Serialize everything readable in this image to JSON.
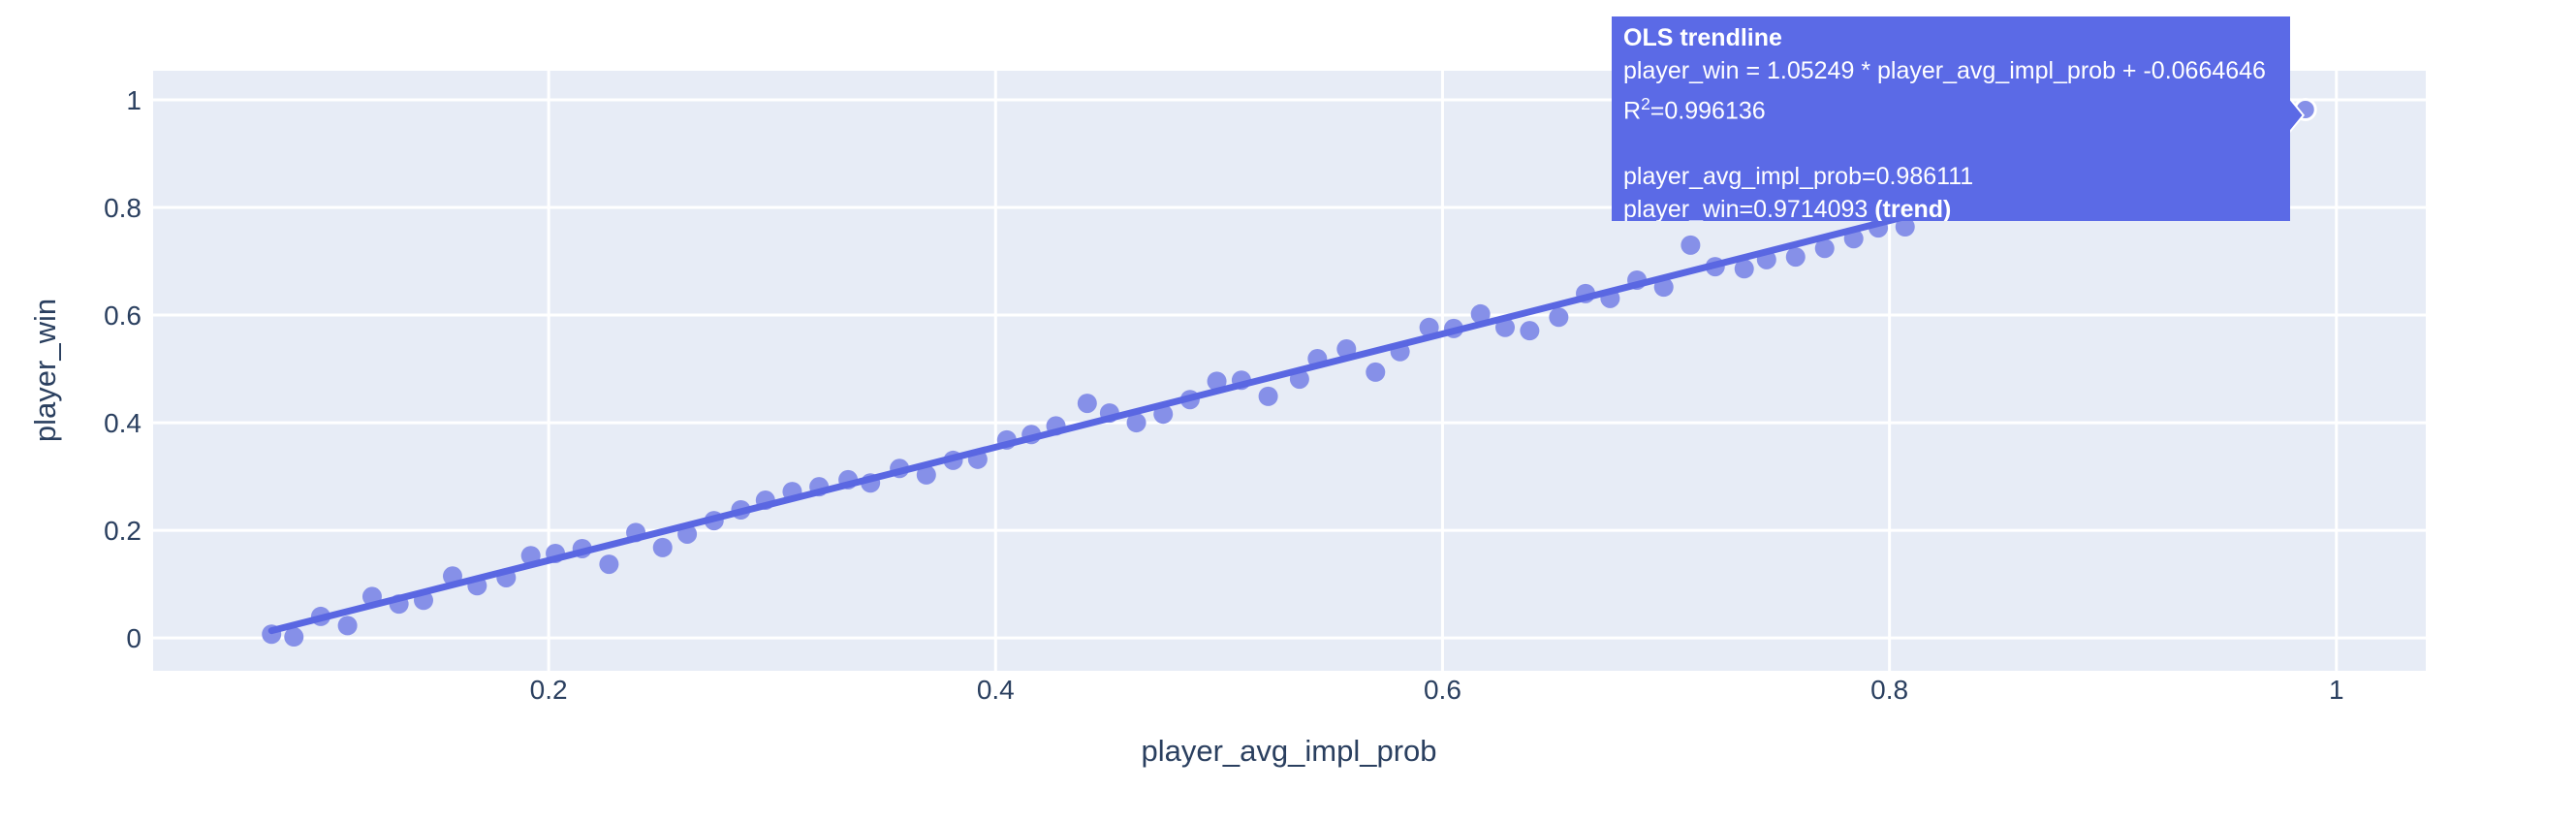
{
  "figure": {
    "background": "#ffffff",
    "plot_bg": "#E7ECF6",
    "grid_color": "#ffffff",
    "text_color": "#2a3f5f",
    "marker_color": "#8690E8",
    "trend_color": "#5A67E2",
    "hover_bg": "#5B6AE6",
    "hover_text_color": "#ffffff"
  },
  "chart_data": {
    "type": "scatter",
    "title": "",
    "xlabel": "player_avg_impl_prob",
    "ylabel": "player_win",
    "xlim": [
      0.023,
      1.04
    ],
    "ylim": [
      -0.061,
      1.054
    ],
    "x_ticks": [
      0.2,
      0.4,
      0.6,
      0.8,
      1
    ],
    "x_tick_labels": [
      "0.2",
      "0.4",
      "0.6",
      "0.8",
      "1"
    ],
    "y_ticks": [
      0,
      0.2,
      0.4,
      0.6,
      0.8,
      1
    ],
    "y_tick_labels": [
      "0",
      "0.2",
      "0.4",
      "0.6",
      "0.8",
      "1"
    ],
    "grid": true,
    "legend": false,
    "points": [
      [
        0.076,
        0.007
      ],
      [
        0.086,
        0.002
      ],
      [
        0.098,
        0.04
      ],
      [
        0.11,
        0.023
      ],
      [
        0.121,
        0.077
      ],
      [
        0.133,
        0.063
      ],
      [
        0.144,
        0.07
      ],
      [
        0.157,
        0.115
      ],
      [
        0.168,
        0.097
      ],
      [
        0.181,
        0.112
      ],
      [
        0.192,
        0.153
      ],
      [
        0.203,
        0.157
      ],
      [
        0.215,
        0.166
      ],
      [
        0.227,
        0.137
      ],
      [
        0.239,
        0.196
      ],
      [
        0.251,
        0.168
      ],
      [
        0.262,
        0.193
      ],
      [
        0.274,
        0.218
      ],
      [
        0.286,
        0.238
      ],
      [
        0.297,
        0.256
      ],
      [
        0.309,
        0.272
      ],
      [
        0.321,
        0.281
      ],
      [
        0.334,
        0.294
      ],
      [
        0.344,
        0.288
      ],
      [
        0.357,
        0.315
      ],
      [
        0.369,
        0.303
      ],
      [
        0.381,
        0.33
      ],
      [
        0.392,
        0.332
      ],
      [
        0.405,
        0.368
      ],
      [
        0.416,
        0.378
      ],
      [
        0.427,
        0.394
      ],
      [
        0.441,
        0.436
      ],
      [
        0.451,
        0.418
      ],
      [
        0.463,
        0.4
      ],
      [
        0.475,
        0.416
      ],
      [
        0.487,
        0.443
      ],
      [
        0.499,
        0.477
      ],
      [
        0.51,
        0.479
      ],
      [
        0.522,
        0.449
      ],
      [
        0.536,
        0.481
      ],
      [
        0.544,
        0.519
      ],
      [
        0.557,
        0.537
      ],
      [
        0.57,
        0.494
      ],
      [
        0.581,
        0.532
      ],
      [
        0.594,
        0.577
      ],
      [
        0.605,
        0.575
      ],
      [
        0.617,
        0.602
      ],
      [
        0.628,
        0.577
      ],
      [
        0.639,
        0.571
      ],
      [
        0.652,
        0.596
      ],
      [
        0.664,
        0.64
      ],
      [
        0.675,
        0.631
      ],
      [
        0.687,
        0.665
      ],
      [
        0.699,
        0.652
      ],
      [
        0.711,
        0.73
      ],
      [
        0.722,
        0.69
      ],
      [
        0.735,
        0.686
      ],
      [
        0.745,
        0.703
      ],
      [
        0.758,
        0.708
      ],
      [
        0.771,
        0.724
      ],
      [
        0.784,
        0.742
      ],
      [
        0.795,
        0.762
      ],
      [
        0.807,
        0.764
      ]
    ],
    "hover_point": [
      0.986111,
      0.982
    ],
    "trendline": {
      "kind": "OLS",
      "slope": 1.05249,
      "intercept": -0.0664646,
      "r2": 0.996136,
      "x_start": 0.076,
      "x_end": 0.986111
    }
  },
  "tooltip": {
    "title": "OLS trendline",
    "equation": "player_win = 1.05249 * player_avg_impl_prob + -0.0664646",
    "r2_prefix": "R",
    "r2_sup": "2",
    "r2_value": "=0.996136",
    "x_line": "player_avg_impl_prob=0.986111",
    "y_line_main": "player_win=0.9714093 ",
    "y_line_bold": "(trend)"
  }
}
